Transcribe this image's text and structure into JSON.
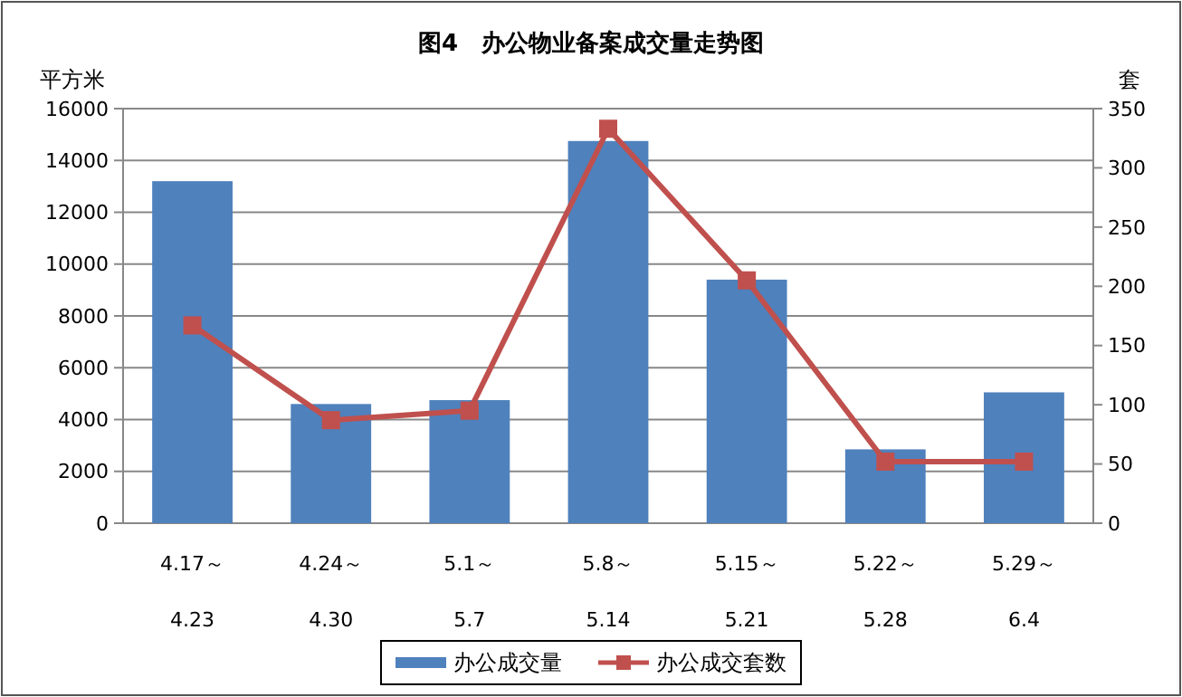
{
  "chart_data": {
    "type": "bar",
    "title": "图4　办公物业备案成交量走势图",
    "ylabel": "平方米",
    "y2label": "套",
    "categories": [
      "4.17～\n4.23",
      "4.24～\n4.30",
      "5.1～\n5.7",
      "5.8～\n5.14",
      "5.15～\n5.21",
      "5.22～\n5.28",
      "5.29～\n6.4"
    ],
    "series": [
      {
        "name": "办公成交量",
        "color": "#4f81bd",
        "values": [
          13200,
          4600,
          4750,
          14750,
          9400,
          2850,
          5050
        ]
      },
      {
        "name": "办公成交套数",
        "type": "line",
        "axis": "y2",
        "color": "#c0504d",
        "marker": "square",
        "values": [
          167,
          87,
          95,
          333,
          205,
          52,
          52
        ]
      }
    ],
    "ylim": [
      0,
      16000
    ],
    "yticks": [
      0,
      2000,
      4000,
      6000,
      8000,
      10000,
      12000,
      14000,
      16000
    ],
    "y2lim": [
      0,
      350
    ],
    "y2ticks": [
      0,
      50,
      100,
      150,
      200,
      250,
      300,
      350
    ],
    "grid": "y",
    "legend": "bottom"
  }
}
